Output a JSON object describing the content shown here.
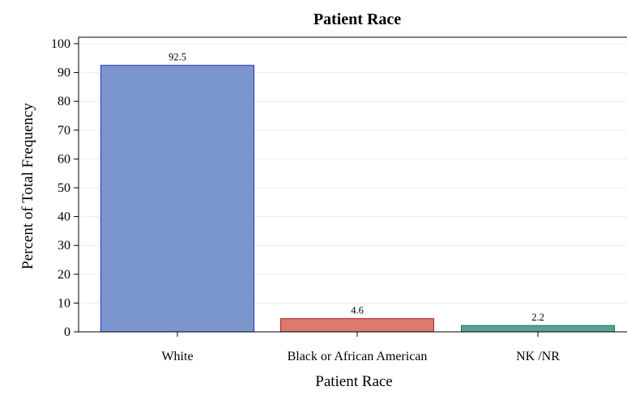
{
  "chart_data": {
    "type": "bar",
    "title": "Patient Race",
    "xlabel": "Patient Race",
    "ylabel": "Percent of Total Frequency",
    "categories": [
      "White",
      "Black or African American",
      "NK /NR"
    ],
    "values": [
      92.5,
      4.6,
      2.2
    ],
    "value_labels": [
      "92.5",
      "4.6",
      "2.2"
    ],
    "ylim": [
      0,
      100
    ],
    "yticks": [
      0,
      10,
      20,
      30,
      40,
      50,
      60,
      70,
      80,
      90,
      100
    ],
    "grid": true,
    "colors": {
      "fills": [
        "#7b96cc",
        "#dc7a6c",
        "#58a394"
      ],
      "strokes": [
        "#2c2ccc",
        "#b42020",
        "#1c6e5c"
      ]
    }
  }
}
